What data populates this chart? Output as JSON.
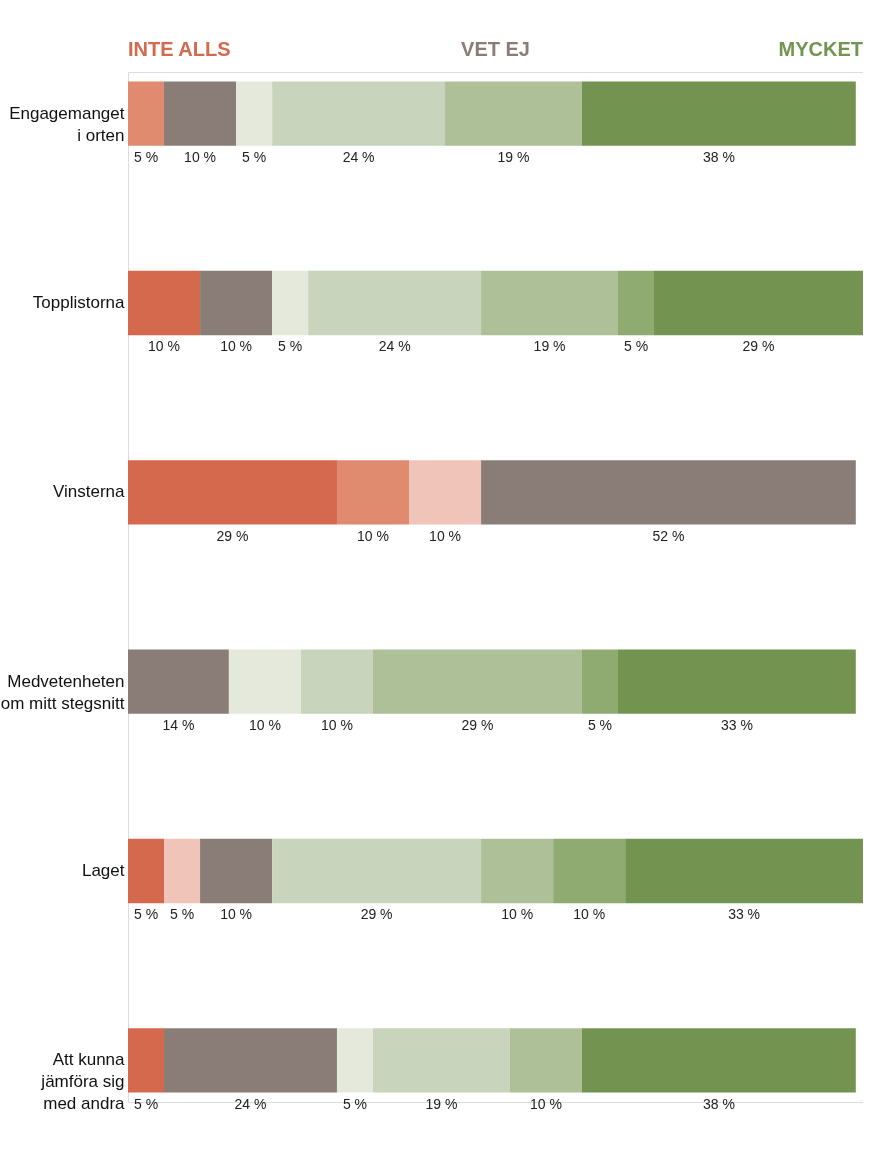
{
  "chart_data": {
    "type": "bar",
    "orientation": "horizontal",
    "stacked": true,
    "categories": [
      "Engagemanget\ni orten",
      "Topplistorna",
      "Vinsterna",
      "Medvetenheten\nom mitt stegsnitt",
      "Laget",
      "Att kunna\njämföra sig\nmed andra"
    ],
    "series": [
      {
        "name": "INTE ALLS",
        "color": "#d4694e",
        "values": [
          null,
          10,
          29,
          null,
          5,
          5
        ],
        "value_labels": [
          null,
          "10 %",
          "29 %",
          null,
          "5 %",
          "5 %"
        ]
      },
      {
        "color": "#e08a70",
        "values": [
          5,
          null,
          10,
          null,
          null,
          null
        ],
        "value_labels": [
          "5 %",
          null,
          "10 %",
          null,
          null,
          null
        ]
      },
      {
        "color": "#f0c4b8",
        "values": [
          null,
          null,
          10,
          null,
          5,
          null
        ],
        "value_labels": [
          null,
          null,
          "10 %",
          null,
          "5 %",
          null
        ]
      },
      {
        "name": "VET EJ",
        "color": "#8a7d77",
        "values": [
          10,
          10,
          52,
          14,
          10,
          24
        ],
        "value_labels": [
          "10 %",
          "10 %",
          "52 %",
          "14 %",
          "10 %",
          "24 %"
        ]
      },
      {
        "color": "#e4e9dc",
        "values": [
          5,
          5,
          null,
          10,
          null,
          5
        ],
        "value_labels": [
          "5 %",
          "5 %",
          null,
          "10 %",
          null,
          "5 %"
        ]
      },
      {
        "color": "#c8d5bc",
        "values": [
          24,
          24,
          null,
          10,
          29,
          19
        ],
        "value_labels": [
          "24 %",
          "24 %",
          null,
          "10 %",
          "29 %",
          "19 %"
        ]
      },
      {
        "color": "#adc098",
        "values": [
          19,
          19,
          null,
          29,
          10,
          10
        ],
        "value_labels": [
          "19 %",
          "19 %",
          null,
          "29 %",
          "10 %",
          "10 %"
        ]
      },
      {
        "color": "#8fab72",
        "values": [
          null,
          5,
          null,
          5,
          10,
          null
        ],
        "value_labels": [
          null,
          "5 %",
          null,
          "5 %",
          "10 %",
          null
        ]
      },
      {
        "name": "MYCKET",
        "color": "#739450",
        "values": [
          38,
          29,
          null,
          33,
          33,
          38
        ],
        "value_labels": [
          "38 %",
          "29 %",
          null,
          "33 %",
          "33 %",
          "38 %"
        ]
      }
    ],
    "legend": "top"
  }
}
